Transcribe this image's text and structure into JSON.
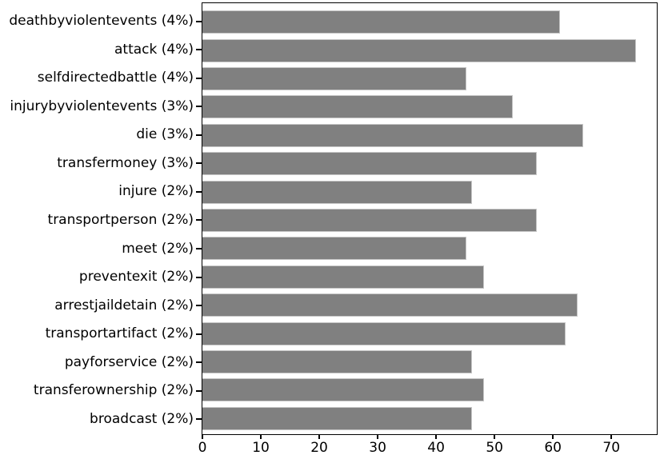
{
  "chart_data": {
    "type": "bar",
    "orientation": "horizontal",
    "title": "",
    "xlabel": "",
    "ylabel": "",
    "categories": [
      "deathbyviolentevents (4%)",
      "attack (4%)",
      "selfdirectedbattle (4%)",
      "injurybyviolentevents (3%)",
      "die (3%)",
      "transfermoney (3%)",
      "injure (2%)",
      "transportperson (2%)",
      "meet (2%)",
      "preventexit (2%)",
      "arrestjaildetain (2%)",
      "transportartifact (2%)",
      "payforservice (2%)",
      "transferownership (2%)",
      "broadcast (2%)"
    ],
    "values": [
      61,
      74,
      45,
      53,
      65,
      57,
      46,
      57,
      45,
      48,
      64,
      62,
      46,
      48,
      46
    ],
    "xticks": [
      0,
      10,
      20,
      30,
      40,
      50,
      60,
      70
    ],
    "xlim": [
      0,
      77.5
    ],
    "grid": false,
    "legend": null,
    "bar_color": "#808080",
    "bar_edge_color": "#c6c6c6",
    "axis_color": "#000000",
    "background_color": "#ffffff"
  }
}
